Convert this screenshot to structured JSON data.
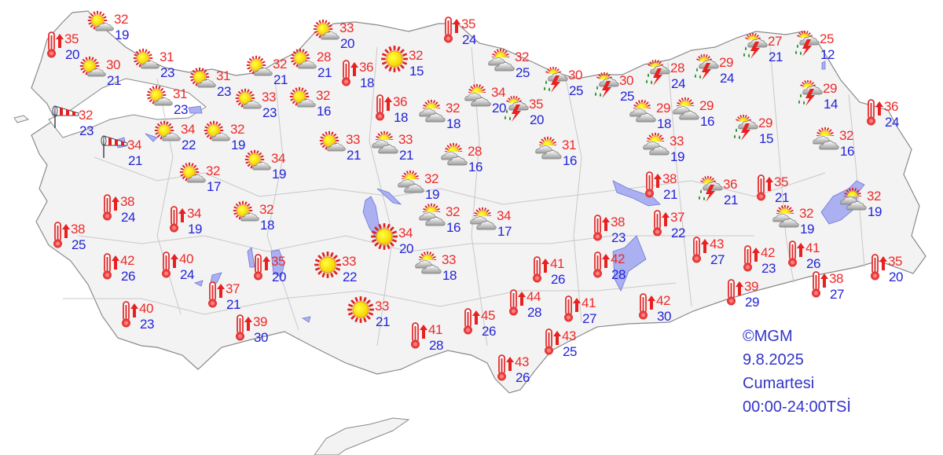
{
  "info": {
    "copyright": "©MGM",
    "date": "9.8.2025",
    "day": "Cumartesi",
    "period": "00:00-24:00TSİ"
  },
  "colors": {
    "max_temp": "#ee2a2a",
    "min_temp": "#2323d8",
    "land": "#f2f2f2",
    "water": "#aab0f0",
    "info_text": "#3434c8"
  },
  "stations": [
    {
      "icon": "partly-cloudy",
      "max": "32",
      "min": "19"
    },
    {
      "icon": "hot",
      "max": "35",
      "min": "20"
    },
    {
      "icon": "partly-cloudy",
      "max": "30",
      "min": "21"
    },
    {
      "icon": "partly-cloudy",
      "max": "31",
      "min": "23"
    },
    {
      "icon": "windy",
      "max": "32",
      "min": "23"
    },
    {
      "icon": "windy",
      "max": "34",
      "min": "21"
    },
    {
      "icon": "partly-cloudy",
      "max": "31",
      "min": "23"
    },
    {
      "icon": "partly-cloudy",
      "max": "31",
      "min": "23"
    },
    {
      "icon": "partly-cloudy",
      "max": "34",
      "min": "22"
    },
    {
      "icon": "partly-cloudy",
      "max": "32",
      "min": "19"
    },
    {
      "icon": "partly-cloudy",
      "max": "32",
      "min": "21"
    },
    {
      "icon": "partly-cloudy",
      "max": "33",
      "min": "23"
    },
    {
      "icon": "partly-cloudy",
      "max": "28",
      "min": "21"
    },
    {
      "icon": "partly-cloudy",
      "max": "33",
      "min": "20"
    },
    {
      "icon": "partly-cloudy",
      "max": "32",
      "min": "16"
    },
    {
      "icon": "hot",
      "max": "36",
      "min": "18"
    },
    {
      "icon": "sunny",
      "max": "32",
      "min": "15"
    },
    {
      "icon": "hot",
      "max": "36",
      "min": "18"
    },
    {
      "icon": "mostly-cloudy",
      "max": "32",
      "min": "18"
    },
    {
      "icon": "partly-cloudy",
      "max": "33",
      "min": "21"
    },
    {
      "icon": "mostly-cloudy",
      "max": "33",
      "min": "21"
    },
    {
      "icon": "partly-cloudy",
      "max": "34",
      "min": "19"
    },
    {
      "icon": "partly-cloudy",
      "max": "32",
      "min": "17"
    },
    {
      "icon": "mostly-cloudy",
      "max": "32",
      "min": "19"
    },
    {
      "icon": "mostly-cloudy",
      "max": "28",
      "min": "16"
    },
    {
      "icon": "hot",
      "max": "35",
      "min": "24"
    },
    {
      "icon": "mostly-cloudy",
      "max": "32",
      "min": "25"
    },
    {
      "icon": "mostly-cloudy",
      "max": "34",
      "min": "20"
    },
    {
      "icon": "thunderstorm",
      "max": "30",
      "min": "25"
    },
    {
      "icon": "thunderstorm",
      "max": "35",
      "min": "20"
    },
    {
      "icon": "thunderstorm",
      "max": "30",
      "min": "25"
    },
    {
      "icon": "mostly-cloudy",
      "max": "31",
      "min": "16"
    },
    {
      "icon": "thunderstorm",
      "max": "28",
      "min": "24"
    },
    {
      "icon": "thunderstorm",
      "max": "29",
      "min": "24"
    },
    {
      "icon": "thunderstorm",
      "max": "27",
      "min": "21"
    },
    {
      "icon": "thunderstorm",
      "max": "25",
      "min": "12"
    },
    {
      "icon": "thunderstorm",
      "max": "29",
      "min": "14"
    },
    {
      "icon": "hot",
      "max": "36",
      "min": "24"
    },
    {
      "icon": "mostly-cloudy",
      "max": "29",
      "min": "18"
    },
    {
      "icon": "mostly-cloudy",
      "max": "29",
      "min": "16"
    },
    {
      "icon": "thunderstorm",
      "max": "29",
      "min": "15"
    },
    {
      "icon": "mostly-cloudy",
      "max": "33",
      "min": "19"
    },
    {
      "icon": "mostly-cloudy",
      "max": "32",
      "min": "16"
    },
    {
      "icon": "hot",
      "max": "38",
      "min": "21"
    },
    {
      "icon": "thunderstorm",
      "max": "36",
      "min": "21"
    },
    {
      "icon": "hot",
      "max": "35",
      "min": "21"
    },
    {
      "icon": "mostly-cloudy",
      "max": "32",
      "min": "19"
    },
    {
      "icon": "mostly-cloudy",
      "max": "32",
      "min": "19"
    },
    {
      "icon": "hot",
      "max": "38",
      "min": "24"
    },
    {
      "icon": "hot",
      "max": "34",
      "min": "19"
    },
    {
      "icon": "partly-cloudy",
      "max": "32",
      "min": "18"
    },
    {
      "icon": "hot",
      "max": "38",
      "min": "25"
    },
    {
      "icon": "hot",
      "max": "42",
      "min": "26"
    },
    {
      "icon": "hot",
      "max": "40",
      "min": "24"
    },
    {
      "icon": "hot",
      "max": "35",
      "min": "20"
    },
    {
      "icon": "sunny",
      "max": "33",
      "min": "22"
    },
    {
      "icon": "sunny",
      "max": "34",
      "min": "20"
    },
    {
      "icon": "mostly-cloudy",
      "max": "32",
      "min": "16"
    },
    {
      "icon": "mostly-cloudy",
      "max": "34",
      "min": "17"
    },
    {
      "icon": "mostly-cloudy",
      "max": "33",
      "min": "18"
    },
    {
      "icon": "hot",
      "max": "37",
      "min": "21"
    },
    {
      "icon": "hot",
      "max": "40",
      "min": "23"
    },
    {
      "icon": "hot",
      "max": "39",
      "min": "30"
    },
    {
      "icon": "sunny",
      "max": "33",
      "min": "21"
    },
    {
      "icon": "hot",
      "max": "41",
      "min": "28"
    },
    {
      "icon": "hot",
      "max": "45",
      "min": "26"
    },
    {
      "icon": "hot",
      "max": "44",
      "min": "28"
    },
    {
      "icon": "hot",
      "max": "41",
      "min": "26"
    },
    {
      "icon": "hot",
      "max": "38",
      "min": "23"
    },
    {
      "icon": "hot",
      "max": "37",
      "min": "22"
    },
    {
      "icon": "hot",
      "max": "42",
      "min": "28"
    },
    {
      "icon": "hot",
      "max": "41",
      "min": "27"
    },
    {
      "icon": "hot",
      "max": "42",
      "min": "30"
    },
    {
      "icon": "hot",
      "max": "43",
      "min": "25"
    },
    {
      "icon": "hot",
      "max": "43",
      "min": "26"
    },
    {
      "icon": "hot",
      "max": "43",
      "min": "27"
    },
    {
      "icon": "hot",
      "max": "42",
      "min": "23"
    },
    {
      "icon": "hot",
      "max": "41",
      "min": "26"
    },
    {
      "icon": "hot",
      "max": "39",
      "min": "29"
    },
    {
      "icon": "hot",
      "max": "38",
      "min": "27"
    },
    {
      "icon": "hot",
      "max": "35",
      "min": "20"
    }
  ]
}
